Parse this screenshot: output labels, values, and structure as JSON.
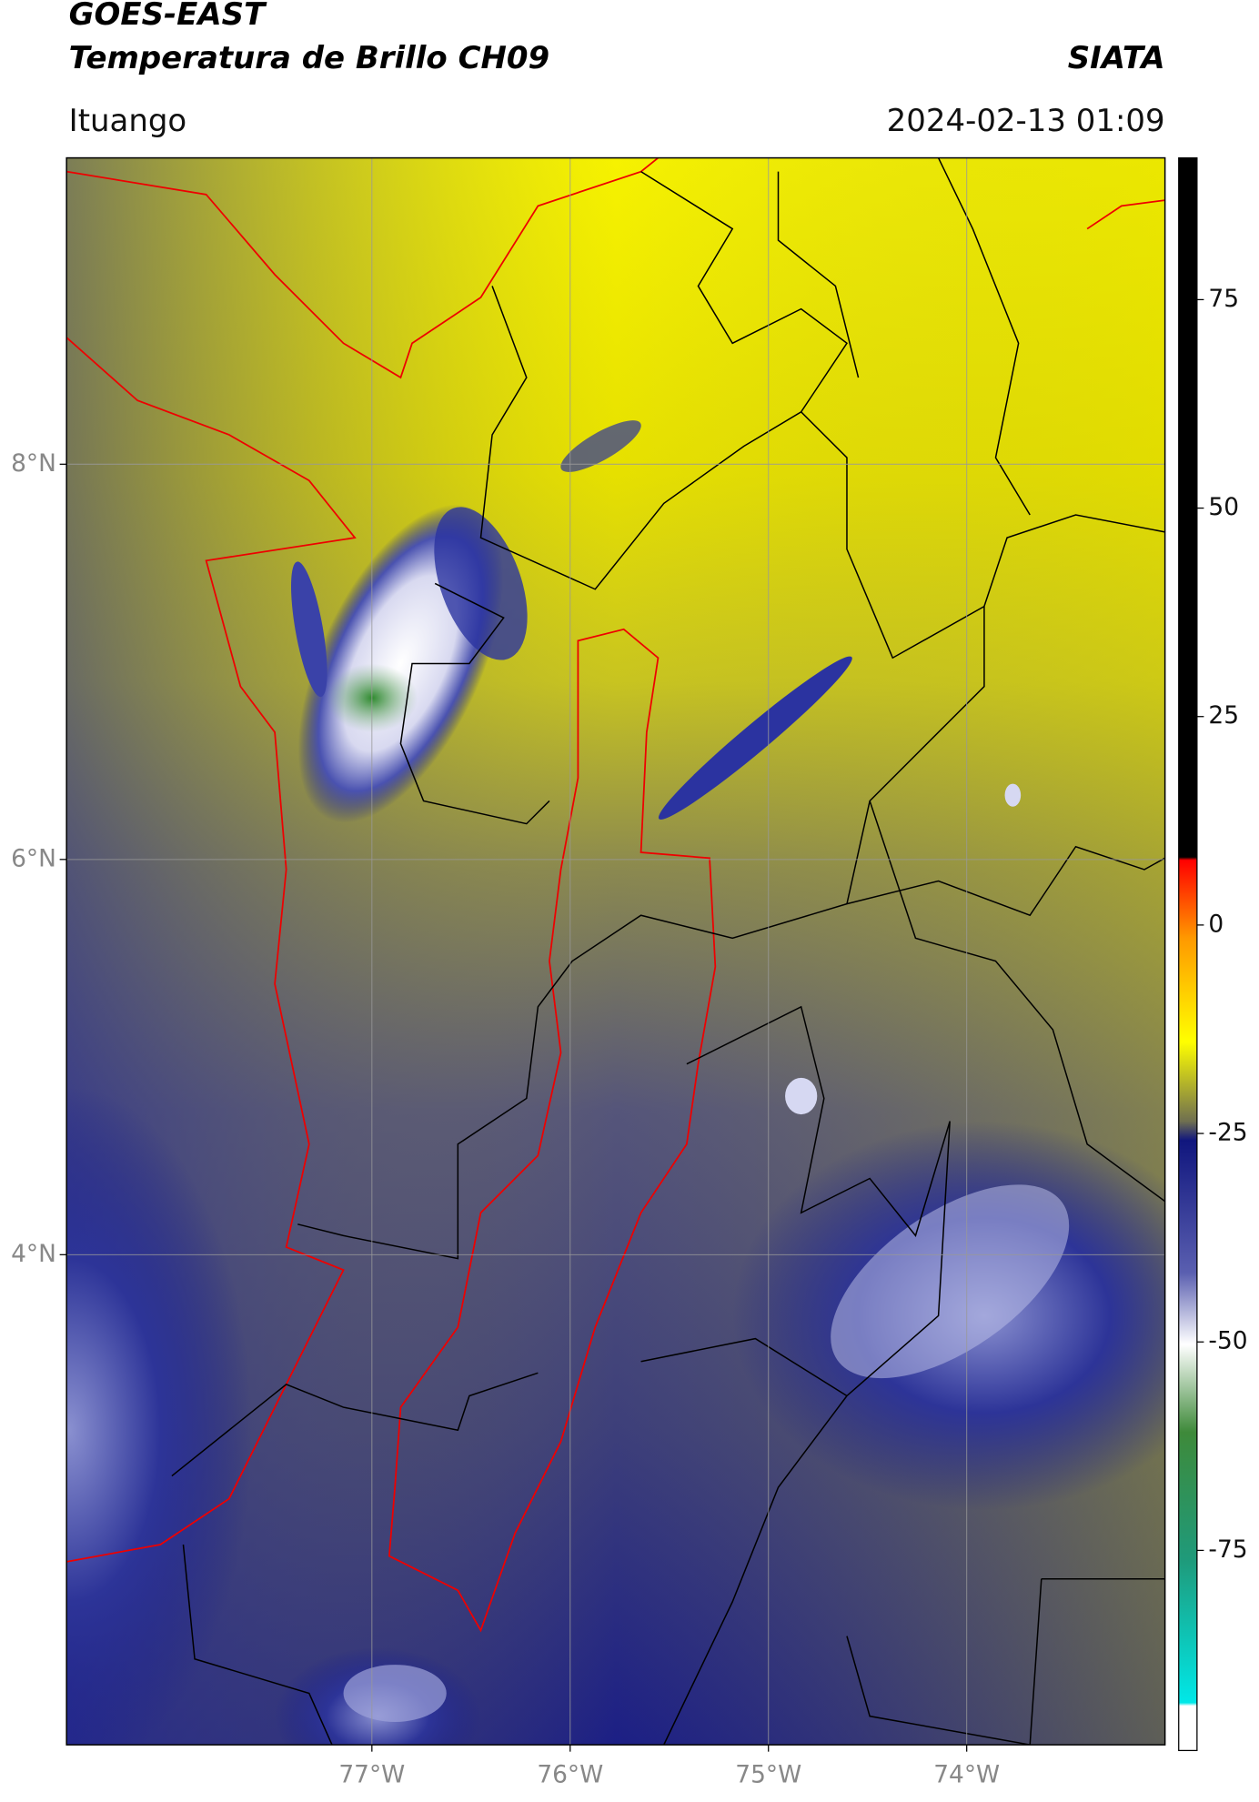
{
  "header": {
    "title": "GOES-EAST",
    "subtitle": "Temperatura de Brillo CH09",
    "source": "SIATA",
    "location": "Ituango",
    "timestamp": "2024-02-13 01:09"
  },
  "map": {
    "xlim": [
      -78.54,
      -73.0
    ],
    "ylim": [
      1.52,
      9.55
    ],
    "xticks": [
      {
        "value": -77,
        "label": "77°W"
      },
      {
        "value": -76,
        "label": "76°W"
      },
      {
        "value": -75,
        "label": "75°W"
      },
      {
        "value": -74,
        "label": "74°W"
      }
    ],
    "yticks": [
      {
        "value": 8,
        "label": "8°N"
      },
      {
        "value": 6,
        "label": "6°N"
      },
      {
        "value": 4,
        "label": "4°N"
      }
    ],
    "grid": true
  },
  "colorbar": {
    "lim": [
      -99,
      92
    ],
    "ticks": [
      75,
      50,
      25,
      0,
      -25,
      -50,
      -75
    ]
  }
}
